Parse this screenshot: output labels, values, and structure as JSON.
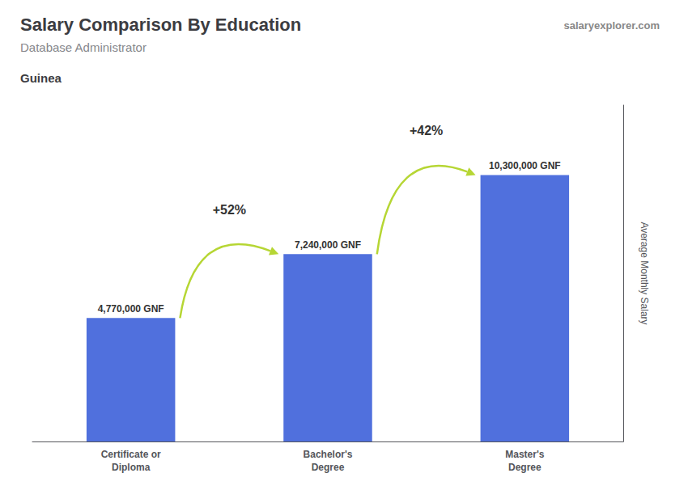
{
  "chart_data": {
    "type": "bar",
    "title": "Salary Comparison By Education",
    "subtitle": "Database Administrator",
    "annotations": [
      "Guinea",
      "salaryexplorer.com",
      "+52%",
      "+42%"
    ],
    "ylabel": "Average Monthly Salary",
    "categories": [
      "Certificate or\nDiploma",
      "Bachelor's\nDegree",
      "Master's\nDegree"
    ],
    "values": [
      4770000,
      7240000,
      10300000
    ],
    "value_labels": [
      "4,770,000 GNF",
      "7,240,000 GNF",
      "10,300,000 GNF"
    ],
    "data_labels": true,
    "ylim": [
      0,
      13000000
    ],
    "grid": false,
    "tick_labels": "x"
  }
}
